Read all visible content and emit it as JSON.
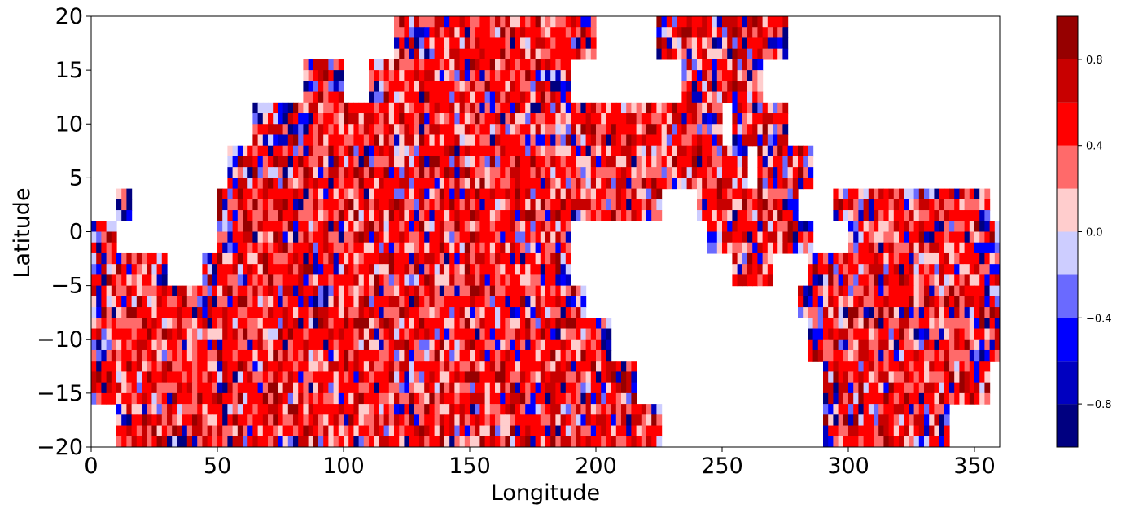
{
  "chart_data": {
    "type": "heatmap",
    "title": "",
    "xlabel": "Longitude",
    "ylabel": "Latitude",
    "xlim": [
      0,
      360
    ],
    "ylim": [
      -20,
      20
    ],
    "x_ticks": [
      0,
      50,
      100,
      150,
      200,
      250,
      300,
      350
    ],
    "x_tick_labels": [
      "0",
      "50",
      "100",
      "150",
      "200",
      "250",
      "300",
      "350"
    ],
    "y_ticks": [
      -20,
      -15,
      -10,
      -5,
      0,
      5,
      10,
      15,
      20
    ],
    "y_tick_labels": [
      "−20",
      "−15",
      "−10",
      "−5",
      "0",
      "5",
      "10",
      "15",
      "20"
    ],
    "colorbar": {
      "range": [
        -1.0,
        1.0
      ],
      "levels": [
        -1.0,
        -0.8,
        -0.6,
        -0.4,
        -0.2,
        0.0,
        0.2,
        0.4,
        0.6,
        0.8,
        1.0
      ],
      "colors": [
        "#000080",
        "#0000c0",
        "#0000ff",
        "#6a6aff",
        "#cdcdff",
        "#ffcdcd",
        "#ff6a6a",
        "#ff0000",
        "#c80000",
        "#960000"
      ],
      "ticks": [
        -0.8,
        -0.4,
        0.0,
        0.4,
        0.8
      ],
      "tick_labels": [
        "−0.8",
        "−0.4",
        "0.0",
        "0.4",
        "0.8"
      ],
      "placement": "right"
    },
    "masked_regions_note": "",
    "coverage_rows": [
      {
        "lat": 18,
        "segments": [
          [
            120,
            130
          ],
          [
            130,
            200
          ],
          [
            225,
            275
          ]
        ]
      },
      {
        "lat": 14,
        "segments": [
          [
            85,
            100
          ],
          [
            110,
            190
          ],
          [
            235,
            265
          ]
        ]
      },
      {
        "lat": 10,
        "segments": [
          [
            65,
            80
          ],
          [
            80,
            190
          ],
          [
            190,
            250
          ],
          [
            255,
            275
          ]
        ]
      },
      {
        "lat": 6,
        "segments": [
          [
            55,
            75
          ],
          [
            75,
            260
          ],
          [
            265,
            285
          ]
        ]
      },
      {
        "lat": 3,
        "segments": [
          [
            10,
            15
          ],
          [
            50,
            225
          ],
          [
            240,
            280
          ],
          [
            295,
            355
          ]
        ]
      },
      {
        "lat": 0,
        "segments": [
          [
            0,
            10
          ],
          [
            50,
            190
          ],
          [
            245,
            285
          ],
          [
            300,
            360
          ]
        ]
      },
      {
        "lat": -3,
        "segments": [
          [
            0,
            30
          ],
          [
            45,
            190
          ],
          [
            255,
            270
          ],
          [
            285,
            360
          ]
        ]
      },
      {
        "lat": -6,
        "segments": [
          [
            0,
            50
          ],
          [
            45,
            195
          ],
          [
            280,
            360
          ]
        ]
      },
      {
        "lat": -10,
        "segments": [
          [
            0,
            205
          ],
          [
            285,
            360
          ]
        ]
      },
      {
        "lat": -14,
        "segments": [
          [
            0,
            215
          ],
          [
            290,
            355
          ]
        ]
      },
      {
        "lat": -18,
        "segments": [
          [
            10,
            225
          ],
          [
            290,
            340
          ]
        ]
      }
    ],
    "field_summary": "Mostly positive values (0.2 to 1.0, red shades) with scattered negative patches (blue), concentrated near edges of the valid-data region."
  }
}
